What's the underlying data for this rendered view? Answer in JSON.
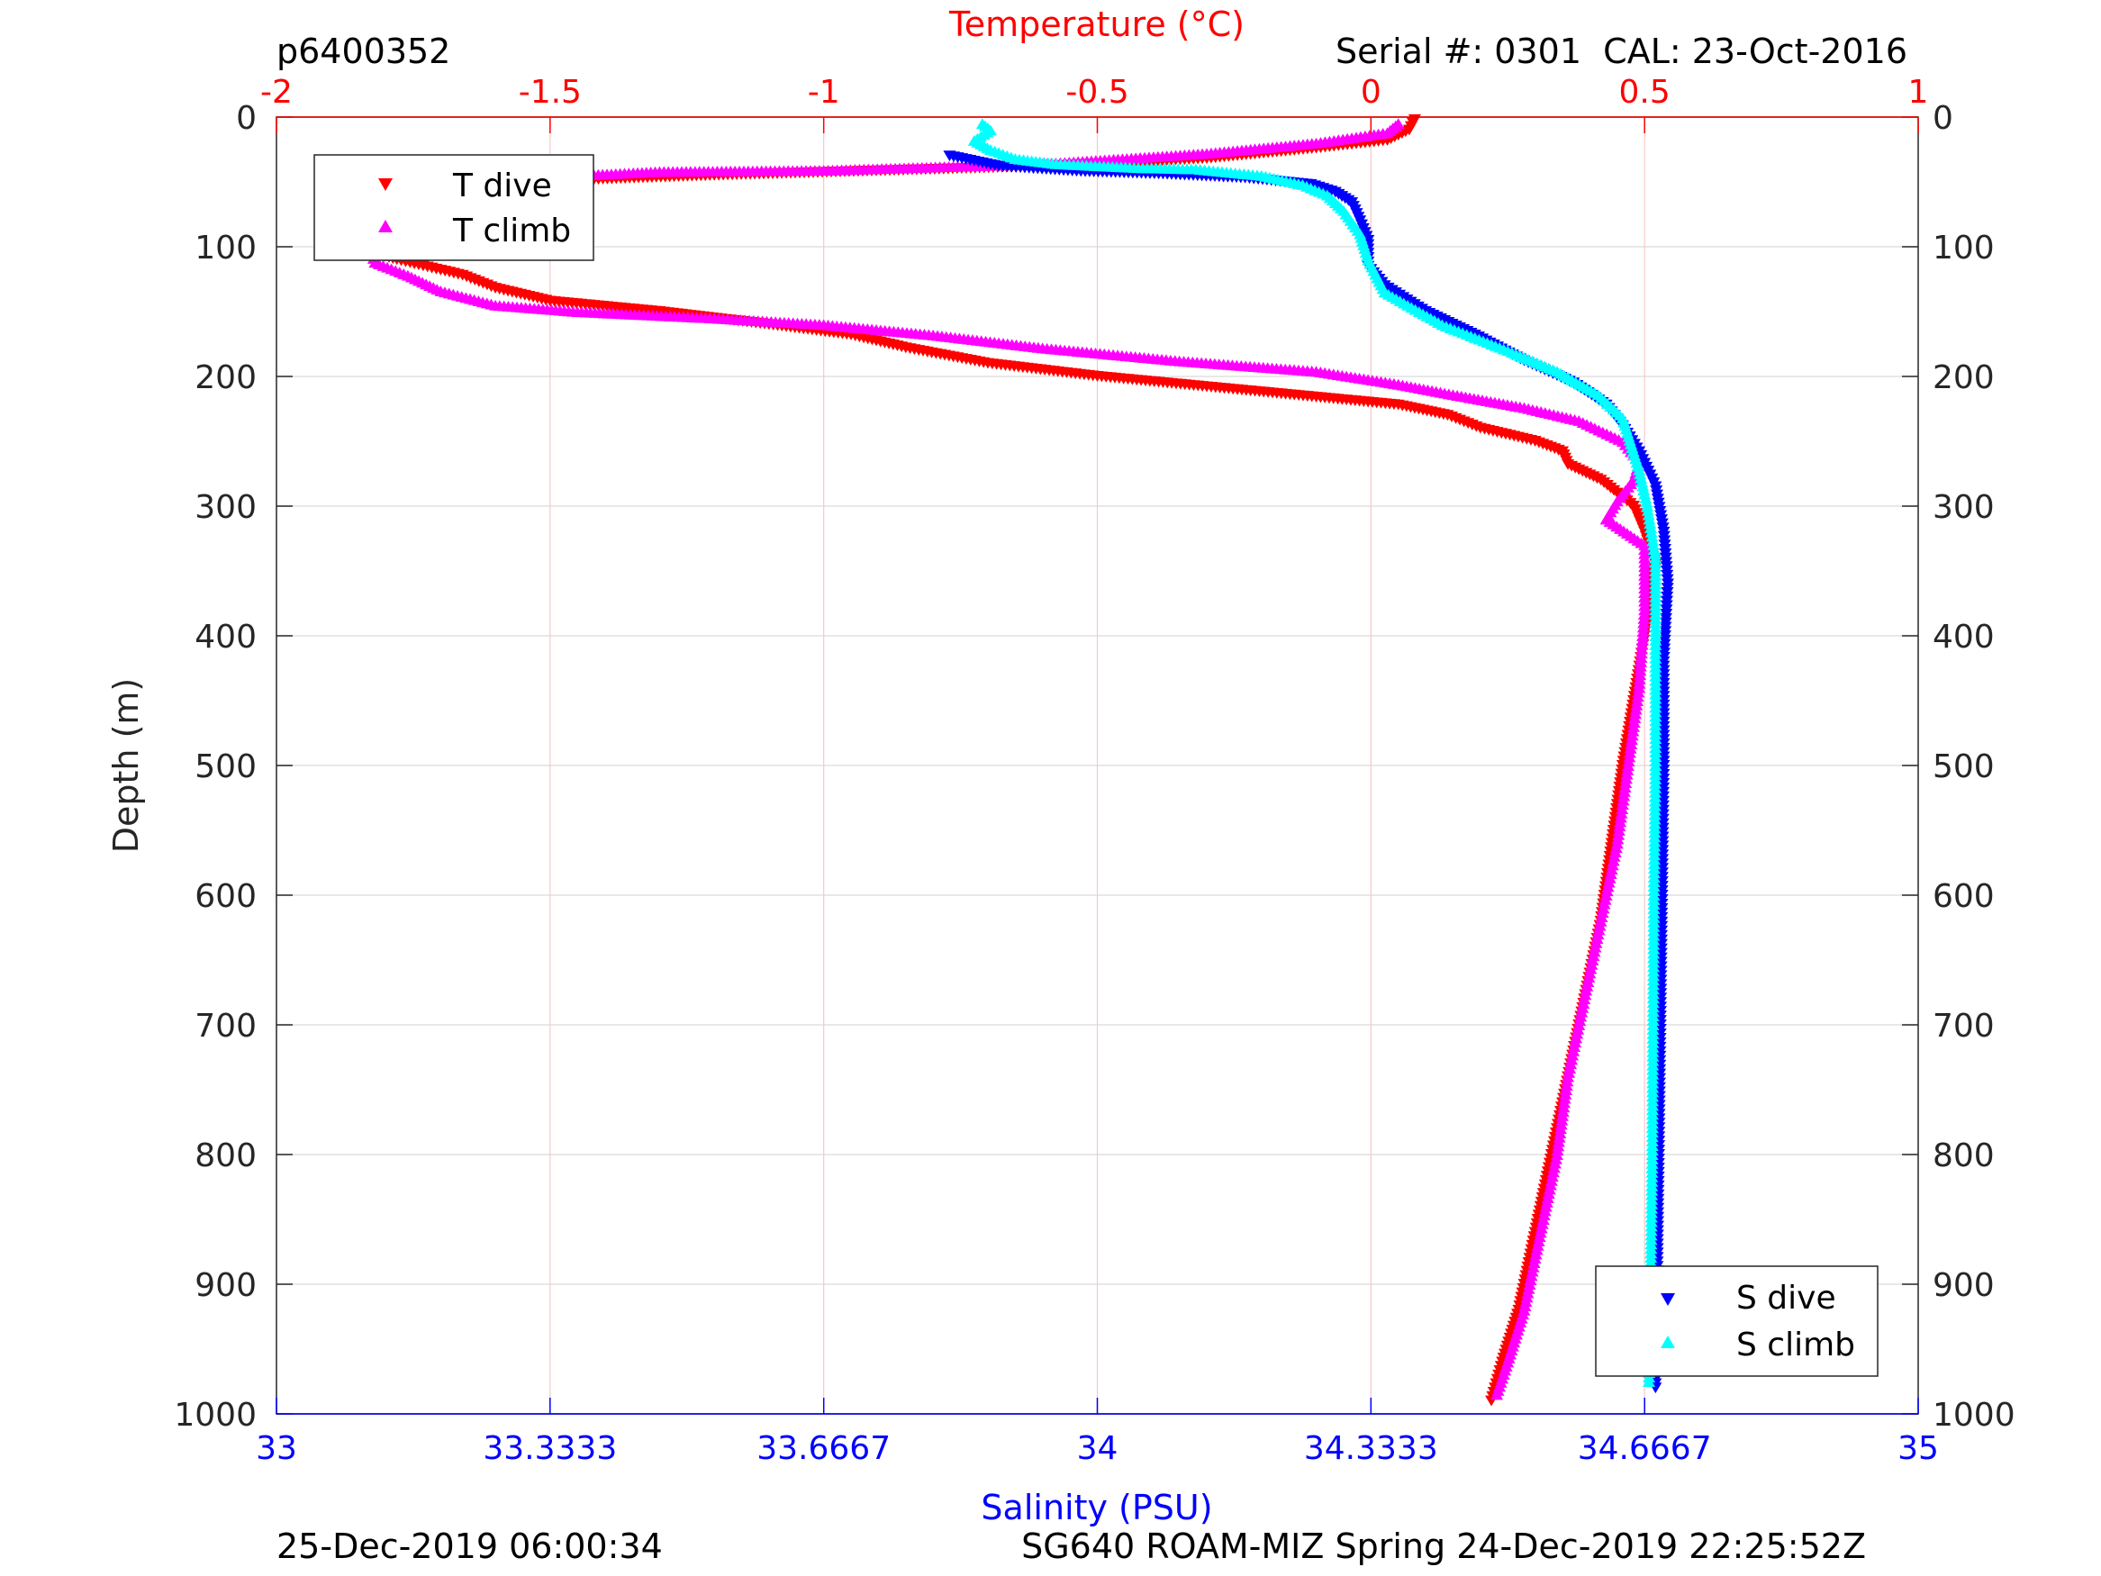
{
  "header": {
    "profile_id": "p6400352",
    "serial_cal": "Serial #: 0301  CAL: 23-Oct-2016"
  },
  "footer": {
    "generated": "25-Dec-2019 06:00:34",
    "mission": "SG640 ROAM-MIZ Spring 24-Dec-2019 22:25:52Z"
  },
  "colors": {
    "temperature": "#ff0000",
    "salinity": "#0000ff",
    "t_dive": "#ff0000",
    "t_climb": "#ff00ff",
    "s_dive": "#0000ff",
    "s_climb": "#00ffff",
    "grid_salinity": "#d9d9d9",
    "grid_temperature": "#f6c9c9"
  },
  "chart_data": {
    "type": "scatter",
    "ylabel": "Depth (m)",
    "yticks": [
      "0",
      "100",
      "200",
      "300",
      "400",
      "500",
      "600",
      "700",
      "800",
      "900",
      "1000"
    ],
    "ylim": [
      0,
      1000
    ],
    "y_reversed": true,
    "x_top": {
      "label": "Temperature (°C)",
      "lim": [
        -2,
        1
      ],
      "ticks": [
        "-2",
        "-1.5",
        "-1",
        "-0.5",
        "0",
        "0.5",
        "1"
      ],
      "ticks_values": [
        -2,
        -1.5,
        -1,
        -0.5,
        0,
        0.5,
        1
      ]
    },
    "x_bottom": {
      "label": "Salinity (PSU)",
      "lim": [
        33,
        35
      ],
      "ticks": [
        "33",
        "33.3333",
        "33.6667",
        "34",
        "34.3333",
        "34.6667",
        "35"
      ],
      "ticks_values": [
        33,
        33.3333,
        33.6667,
        34,
        34.3333,
        34.6667,
        35
      ]
    },
    "grid": true,
    "legend_temperature": {
      "placement": "top-left",
      "entries": [
        "T dive",
        "T climb"
      ]
    },
    "legend_salinity": {
      "placement": "bottom-right",
      "entries": [
        "S dive",
        "S climb"
      ]
    },
    "series": [
      {
        "name": "T dive",
        "axis": "temperature",
        "marker": "triangle-down",
        "points": [
          [
            0.08,
            2
          ],
          [
            0.07,
            10
          ],
          [
            0.03,
            18
          ],
          [
            -0.1,
            24
          ],
          [
            -0.3,
            32
          ],
          [
            -0.6,
            38
          ],
          [
            -1.2,
            45
          ],
          [
            -1.55,
            50
          ],
          [
            -1.7,
            56
          ],
          [
            -1.74,
            65
          ],
          [
            -1.76,
            78
          ],
          [
            -1.8,
            92
          ],
          [
            -1.83,
            104
          ],
          [
            -1.78,
            110
          ],
          [
            -1.66,
            122
          ],
          [
            -1.6,
            132
          ],
          [
            -1.5,
            142
          ],
          [
            -1.3,
            150
          ],
          [
            -1.1,
            160
          ],
          [
            -0.95,
            168
          ],
          [
            -0.85,
            178
          ],
          [
            -0.7,
            190
          ],
          [
            -0.5,
            200
          ],
          [
            -0.3,
            208
          ],
          [
            -0.1,
            216
          ],
          [
            0.05,
            222
          ],
          [
            0.14,
            230
          ],
          [
            0.2,
            240
          ],
          [
            0.3,
            250
          ],
          [
            0.35,
            258
          ],
          [
            0.36,
            268
          ],
          [
            0.42,
            280
          ],
          [
            0.48,
            300
          ],
          [
            0.5,
            320
          ],
          [
            0.52,
            345
          ],
          [
            0.5,
            400
          ],
          [
            0.48,
            450
          ],
          [
            0.46,
            500
          ],
          [
            0.44,
            560
          ],
          [
            0.42,
            620
          ],
          [
            0.39,
            680
          ],
          [
            0.36,
            740
          ],
          [
            0.33,
            800
          ],
          [
            0.3,
            860
          ],
          [
            0.27,
            920
          ],
          [
            0.24,
            960
          ],
          [
            0.22,
            990
          ]
        ]
      },
      {
        "name": "T climb",
        "axis": "temperature",
        "marker": "triangle-up",
        "points": [
          [
            0.05,
            5
          ],
          [
            0.03,
            12
          ],
          [
            -0.1,
            20
          ],
          [
            -0.3,
            28
          ],
          [
            -0.6,
            36
          ],
          [
            -1.0,
            41
          ],
          [
            -1.3,
            42
          ],
          [
            -1.5,
            46
          ],
          [
            -1.65,
            52
          ],
          [
            -1.74,
            68
          ],
          [
            -1.78,
            85
          ],
          [
            -1.83,
            100
          ],
          [
            -1.82,
            112
          ],
          [
            -1.76,
            122
          ],
          [
            -1.7,
            134
          ],
          [
            -1.6,
            145
          ],
          [
            -1.45,
            150
          ],
          [
            -1.2,
            155
          ],
          [
            -1.0,
            160
          ],
          [
            -0.8,
            168
          ],
          [
            -0.6,
            178
          ],
          [
            -0.35,
            188
          ],
          [
            -0.1,
            196
          ],
          [
            0.05,
            206
          ],
          [
            0.15,
            214
          ],
          [
            0.28,
            224
          ],
          [
            0.38,
            234
          ],
          [
            0.46,
            250
          ],
          [
            0.49,
            266
          ],
          [
            0.48,
            280
          ],
          [
            0.45,
            296
          ],
          [
            0.43,
            310
          ],
          [
            0.5,
            330
          ],
          [
            0.5,
            380
          ],
          [
            0.49,
            440
          ],
          [
            0.47,
            500
          ],
          [
            0.45,
            560
          ],
          [
            0.42,
            620
          ],
          [
            0.39,
            680
          ],
          [
            0.36,
            740
          ],
          [
            0.34,
            800
          ],
          [
            0.31,
            860
          ],
          [
            0.28,
            920
          ],
          [
            0.25,
            960
          ],
          [
            0.23,
            985
          ]
        ]
      },
      {
        "name": "S dive",
        "axis": "salinity",
        "marker": "triangle-down",
        "points": [
          [
            33.82,
            30
          ],
          [
            33.88,
            38
          ],
          [
            33.98,
            42
          ],
          [
            34.08,
            44
          ],
          [
            34.18,
            47
          ],
          [
            34.26,
            52
          ],
          [
            34.29,
            58
          ],
          [
            34.31,
            66
          ],
          [
            34.32,
            80
          ],
          [
            34.33,
            95
          ],
          [
            34.33,
            115
          ],
          [
            34.35,
            130
          ],
          [
            34.4,
            150
          ],
          [
            34.46,
            168
          ],
          [
            34.52,
            188
          ],
          [
            34.58,
            205
          ],
          [
            34.62,
            222
          ],
          [
            34.64,
            238
          ],
          [
            34.66,
            258
          ],
          [
            34.68,
            285
          ],
          [
            34.69,
            320
          ],
          [
            34.695,
            360
          ],
          [
            34.69,
            420
          ],
          [
            34.69,
            500
          ],
          [
            34.688,
            600
          ],
          [
            34.686,
            700
          ],
          [
            34.684,
            800
          ],
          [
            34.682,
            900
          ],
          [
            34.68,
            980
          ]
        ]
      },
      {
        "name": "S climb",
        "axis": "salinity",
        "marker": "triangle-up",
        "points": [
          [
            33.86,
            5
          ],
          [
            33.87,
            10
          ],
          [
            33.85,
            18
          ],
          [
            33.87,
            25
          ],
          [
            33.9,
            32
          ],
          [
            33.95,
            36
          ],
          [
            34.05,
            39
          ],
          [
            34.12,
            40
          ],
          [
            34.2,
            45
          ],
          [
            34.25,
            52
          ],
          [
            34.28,
            60
          ],
          [
            34.3,
            72
          ],
          [
            34.32,
            90
          ],
          [
            34.33,
            110
          ],
          [
            34.35,
            135
          ],
          [
            34.42,
            160
          ],
          [
            34.5,
            180
          ],
          [
            34.56,
            196
          ],
          [
            34.61,
            214
          ],
          [
            34.64,
            232
          ],
          [
            34.65,
            252
          ],
          [
            34.66,
            272
          ],
          [
            34.67,
            300
          ],
          [
            34.68,
            340
          ],
          [
            34.68,
            400
          ],
          [
            34.68,
            500
          ],
          [
            34.678,
            600
          ],
          [
            34.677,
            700
          ],
          [
            34.676,
            800
          ],
          [
            34.674,
            900
          ],
          [
            34.672,
            975
          ]
        ]
      }
    ]
  }
}
